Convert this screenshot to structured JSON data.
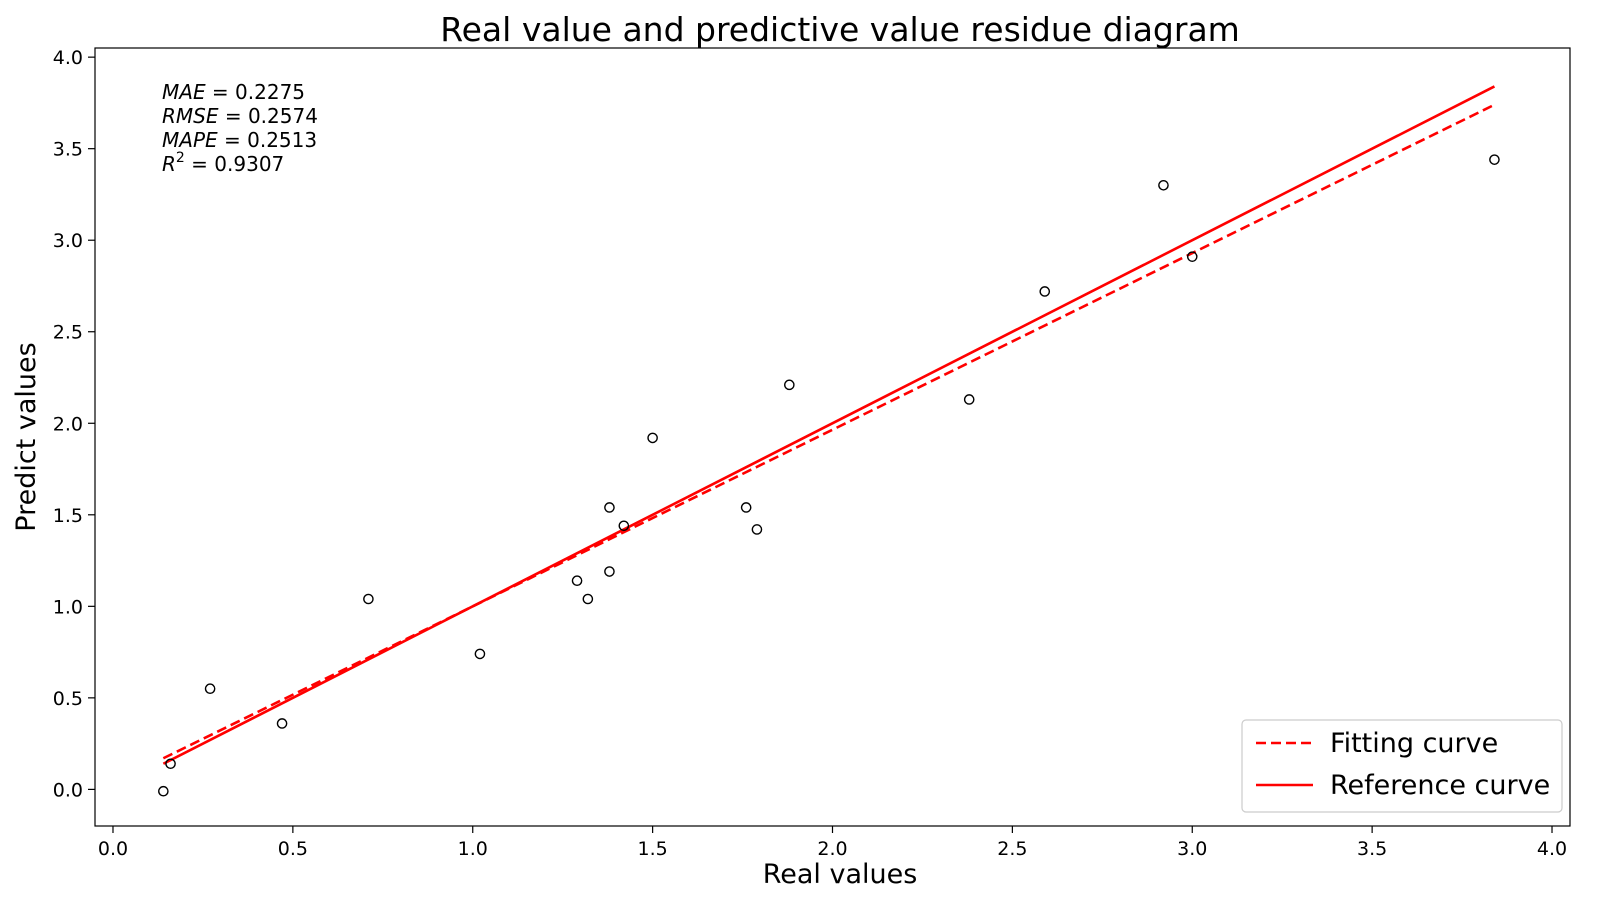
{
  "chart_data": {
    "type": "scatter",
    "title": "Real value and predictive value residue diagram",
    "xlabel": "Real values",
    "ylabel": "Predict values",
    "xlim": [
      -0.05,
      4.05
    ],
    "ylim": [
      -0.2,
      4.05
    ],
    "xticks": [
      "0.0",
      "0.5",
      "1.0",
      "1.5",
      "2.0",
      "2.5",
      "3.0",
      "3.5",
      "4.0"
    ],
    "yticks": [
      "0.0",
      "0.5",
      "1.0",
      "1.5",
      "2.0",
      "2.5",
      "3.0",
      "3.5",
      "4.0"
    ],
    "grid": false,
    "legend_position": "bottom-right",
    "points": {
      "x": [
        0.14,
        0.16,
        0.27,
        0.47,
        0.71,
        1.02,
        1.29,
        1.32,
        1.38,
        1.38,
        1.42,
        1.5,
        1.76,
        1.79,
        1.88,
        2.38,
        2.59,
        2.92,
        3.0,
        3.84
      ],
      "y": [
        -0.01,
        0.14,
        0.55,
        0.36,
        1.04,
        0.74,
        1.14,
        1.04,
        1.54,
        1.19,
        1.44,
        1.92,
        1.54,
        1.42,
        2.21,
        2.13,
        2.72,
        3.3,
        2.91,
        3.44
      ]
    },
    "series": [
      {
        "name": "Fitting curve",
        "style": "dashed",
        "color": "#ff0000",
        "x": [
          0.14,
          3.84
        ],
        "y": [
          0.17,
          3.74
        ]
      },
      {
        "name": "Reference curve",
        "style": "solid",
        "color": "#ff0000",
        "x": [
          0.14,
          3.84
        ],
        "y": [
          0.14,
          3.84
        ]
      }
    ],
    "annotations": [
      {
        "label": "MAE",
        "value": "= 0.2275"
      },
      {
        "label": "RMSE",
        "value": "= 0.2574"
      },
      {
        "label": "MAPE",
        "value": "= 0.2513"
      },
      {
        "label": "R",
        "sup": "2",
        "value": "= 0.9307"
      }
    ]
  }
}
